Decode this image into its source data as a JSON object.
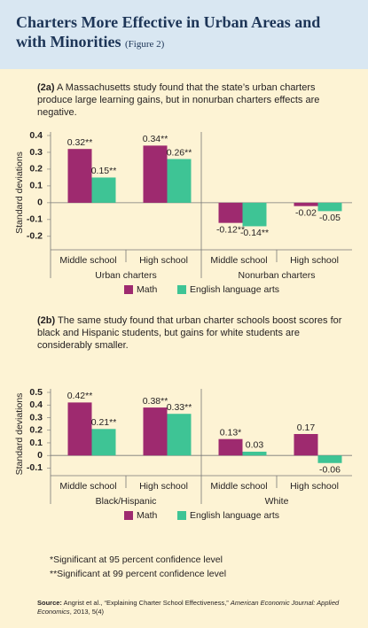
{
  "header": {
    "title": "Charters More Effective in Urban Areas and with Minorities",
    "figure_label": "(Figure 2)"
  },
  "chart_data": [
    {
      "type": "bar",
      "label": "(2a)",
      "subtitle": "A Massachusetts study found that the state’s urban charters produce large learning gains, but in nonurban charters effects are negative.",
      "y_label": "Standard deviations",
      "categories": [
        "Middle school",
        "High school",
        "Middle school",
        "High school"
      ],
      "groups": [
        "Urban charters",
        "Nonurban charters"
      ],
      "series": [
        {
          "name": "Math",
          "color": "#9e2a6f",
          "values": [
            0.32,
            0.34,
            -0.12,
            -0.02
          ],
          "value_labels": [
            "0.32**",
            "0.34**",
            "-0.12**",
            "-0.02"
          ]
        },
        {
          "name": "English language arts",
          "color": "#3ec495",
          "values": [
            0.15,
            0.26,
            -0.14,
            -0.05
          ],
          "value_labels": [
            "0.15**",
            "0.26**",
            "-0.14**",
            "-0.05"
          ]
        }
      ],
      "ylim": [
        -0.28,
        0.4
      ],
      "yticks": [
        0.4,
        0.3,
        0.2,
        0.1,
        0,
        -0.1,
        -0.2
      ]
    },
    {
      "type": "bar",
      "label": "(2b)",
      "subtitle": "The same study found that urban charter schools boost scores for black and Hispanic students, but gains for white students are considerably smaller.",
      "y_label": "Standard deviations",
      "categories": [
        "Middle school",
        "High school",
        "Middle school",
        "High school"
      ],
      "groups": [
        "Black/Hispanic",
        "White"
      ],
      "series": [
        {
          "name": "Math",
          "color": "#9e2a6f",
          "values": [
            0.42,
            0.38,
            0.13,
            0.17
          ],
          "value_labels": [
            "0.42**",
            "0.38**",
            "0.13*",
            "0.17"
          ]
        },
        {
          "name": "English language arts",
          "color": "#3ec495",
          "values": [
            0.21,
            0.33,
            0.03,
            -0.06
          ],
          "value_labels": [
            "0.21**",
            "0.33**",
            "0.03",
            "-0.06"
          ]
        }
      ],
      "ylim": [
        -0.16,
        0.5
      ],
      "yticks": [
        0.5,
        0.4,
        0.3,
        0.2,
        0.1,
        0,
        -0.1
      ]
    }
  ],
  "footnotes": [
    "*Significant at 95 percent confidence level",
    "**Significant at 99 percent confidence level"
  ],
  "source": {
    "label": "Source:",
    "text": "Angrist et al., “Explaining Charter School Effectiveness,”",
    "journal": "American Economic Journal: Applied Economics",
    "rest": ", 2013, 5(4)"
  }
}
